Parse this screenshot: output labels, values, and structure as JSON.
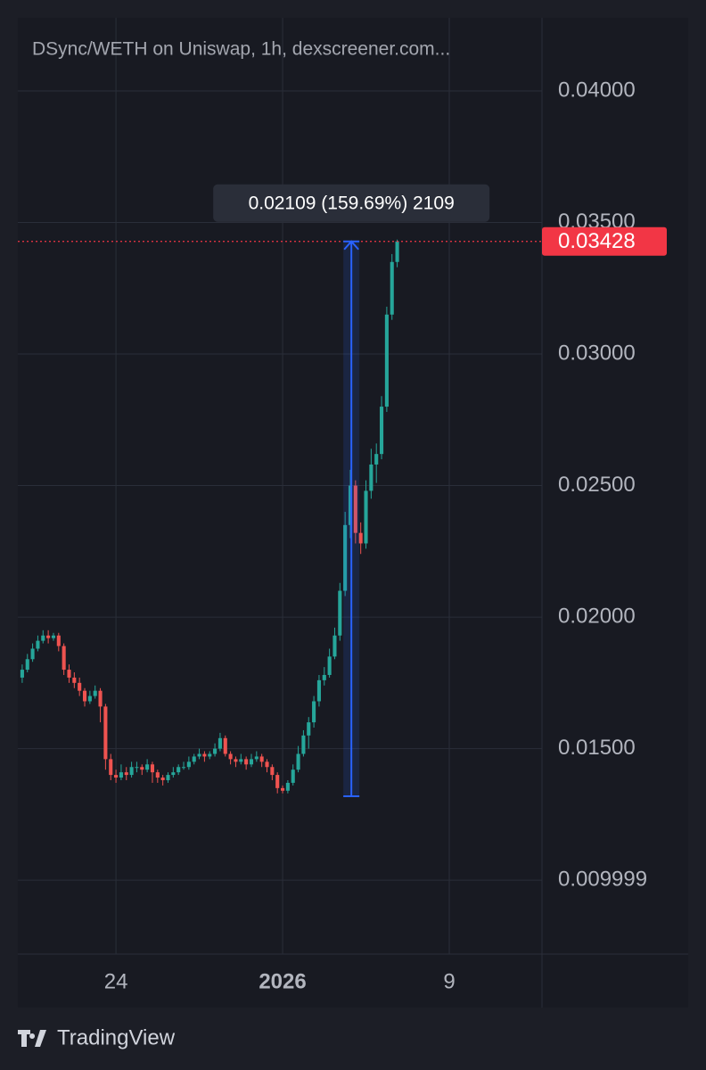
{
  "chart_data": {
    "type": "candlestick",
    "title": "DSync/WETH on Uniswap, 1h, dexscreener.com...",
    "x": [
      19.5,
      19.75,
      20,
      20.25,
      20.5,
      20.75,
      21,
      21.25,
      21.5,
      21.75,
      22,
      22.25,
      22.5,
      22.75,
      23,
      23.25,
      23.5,
      23.75,
      24,
      24.25,
      24.5,
      24.75,
      25,
      25.25,
      25.5,
      25.75,
      26,
      26.25,
      26.5,
      26.75,
      27,
      27.25,
      27.5,
      27.75,
      28,
      28.25,
      28.5,
      28.75,
      29,
      29.25,
      29.5,
      29.75,
      30,
      30.25,
      30.5,
      30.75,
      31,
      31.25,
      31.5,
      31.75,
      32,
      32.25,
      32.5,
      32.75,
      33,
      33.25,
      33.5,
      33.75,
      34,
      34.25,
      34.5,
      34.75,
      35,
      35.25,
      35.5,
      35.75,
      36,
      36.25,
      36.5,
      36.75,
      37,
      37.25,
      37.5
    ],
    "open": [
      0.0177,
      0.018,
      0.0184,
      0.0188,
      0.0191,
      0.0193,
      0.0192,
      0.0193,
      0.0189,
      0.018,
      0.0177,
      0.0175,
      0.0172,
      0.0168,
      0.017,
      0.0172,
      0.0166,
      0.0146,
      0.014,
      0.0139,
      0.0141,
      0.014,
      0.0143,
      0.0143,
      0.0142,
      0.0144,
      0.0141,
      0.0139,
      0.0138,
      0.014,
      0.0141,
      0.0143,
      0.0143,
      0.0145,
      0.0147,
      0.0148,
      0.0147,
      0.0148,
      0.015,
      0.0154,
      0.0148,
      0.0146,
      0.0145,
      0.0146,
      0.0144,
      0.0146,
      0.0147,
      0.0145,
      0.0143,
      0.014,
      0.0135,
      0.0134,
      0.0137,
      0.0142,
      0.0148,
      0.0155,
      0.016,
      0.0168,
      0.0176,
      0.0178,
      0.0185,
      0.0193,
      0.021,
      0.0235,
      0.025,
      0.0232,
      0.0228,
      0.0248,
      0.0258,
      0.0262,
      0.028,
      0.0315,
      0.0335
    ],
    "high": [
      0.0182,
      0.0186,
      0.019,
      0.0193,
      0.0195,
      0.0195,
      0.0194,
      0.0194,
      0.019,
      0.0182,
      0.0179,
      0.0177,
      0.0173,
      0.0172,
      0.0174,
      0.0173,
      0.0167,
      0.0148,
      0.0142,
      0.0144,
      0.0143,
      0.0145,
      0.0145,
      0.0144,
      0.0146,
      0.0145,
      0.0142,
      0.014,
      0.0141,
      0.0143,
      0.0144,
      0.0145,
      0.0147,
      0.0148,
      0.015,
      0.0149,
      0.0149,
      0.0152,
      0.0156,
      0.0155,
      0.0149,
      0.0147,
      0.0148,
      0.0147,
      0.0148,
      0.0149,
      0.0148,
      0.0146,
      0.0144,
      0.0141,
      0.0136,
      0.0138,
      0.0144,
      0.0151,
      0.0157,
      0.0162,
      0.017,
      0.0178,
      0.0181,
      0.0188,
      0.0196,
      0.0213,
      0.024,
      0.0256,
      0.0252,
      0.0236,
      0.0252,
      0.0264,
      0.0266,
      0.0284,
      0.0318,
      0.0338,
      0.03435
    ],
    "low": [
      0.0175,
      0.0179,
      0.0183,
      0.0187,
      0.019,
      0.019,
      0.0191,
      0.0187,
      0.0178,
      0.0175,
      0.0173,
      0.017,
      0.0166,
      0.0167,
      0.0169,
      0.016,
      0.0142,
      0.0138,
      0.0137,
      0.0138,
      0.0138,
      0.0139,
      0.0141,
      0.014,
      0.0141,
      0.0137,
      0.0137,
      0.0136,
      0.0137,
      0.0139,
      0.014,
      0.0142,
      0.0142,
      0.0144,
      0.0146,
      0.0145,
      0.0146,
      0.0147,
      0.0149,
      0.0147,
      0.0144,
      0.0143,
      0.0144,
      0.0142,
      0.0143,
      0.0145,
      0.0143,
      0.0141,
      0.0138,
      0.0133,
      0.0133,
      0.0133,
      0.0136,
      0.0141,
      0.0147,
      0.015,
      0.0158,
      0.0166,
      0.0174,
      0.0177,
      0.0184,
      0.0191,
      0.0208,
      0.023,
      0.0228,
      0.0224,
      0.0226,
      0.0245,
      0.0251,
      0.026,
      0.0278,
      0.0313,
      0.0333
    ],
    "close": [
      0.018,
      0.0184,
      0.0188,
      0.0191,
      0.0193,
      0.0192,
      0.0193,
      0.0189,
      0.018,
      0.0177,
      0.0175,
      0.0172,
      0.0168,
      0.017,
      0.0172,
      0.0166,
      0.0146,
      0.014,
      0.0139,
      0.0141,
      0.014,
      0.0143,
      0.0143,
      0.0142,
      0.0144,
      0.0141,
      0.0139,
      0.0138,
      0.014,
      0.0141,
      0.0143,
      0.0143,
      0.0145,
      0.0147,
      0.0148,
      0.0147,
      0.0148,
      0.015,
      0.0154,
      0.0148,
      0.0146,
      0.0145,
      0.0146,
      0.0144,
      0.0146,
      0.0147,
      0.0145,
      0.0143,
      0.014,
      0.0135,
      0.0134,
      0.0137,
      0.0142,
      0.0148,
      0.0155,
      0.016,
      0.0168,
      0.0176,
      0.0178,
      0.0185,
      0.0193,
      0.021,
      0.0235,
      0.025,
      0.0232,
      0.0228,
      0.0248,
      0.0258,
      0.0262,
      0.028,
      0.0315,
      0.0335,
      0.03428
    ],
    "up_color": "#26a69a",
    "down_color": "#ef5350",
    "xlim": [
      19.29,
      44.45
    ],
    "xticks": [
      {
        "value": 24,
        "label": "24"
      },
      {
        "value": 32,
        "label": "2026"
      },
      {
        "value": 40,
        "label": "9"
      }
    ],
    "ylim": [
      0.00719,
      0.04278
    ],
    "yticks": [
      {
        "value": 0.04,
        "label": "0.04000"
      },
      {
        "value": 0.035,
        "label": "0.03500"
      },
      {
        "value": 0.03,
        "label": "0.03000"
      },
      {
        "value": 0.025,
        "label": "0.02500"
      },
      {
        "value": 0.02,
        "label": "0.02000"
      },
      {
        "value": 0.015,
        "label": "0.01500"
      },
      0.009999
    ],
    "grid": true,
    "last_price": 0.03428,
    "last_price_color": "#f23645",
    "measure": {
      "x": 35.3,
      "low": 0.01319,
      "high": 0.03428,
      "label": "0.02109 (159.69%) 2109",
      "color": "#2962ff"
    }
  },
  "brand": "TradingView"
}
